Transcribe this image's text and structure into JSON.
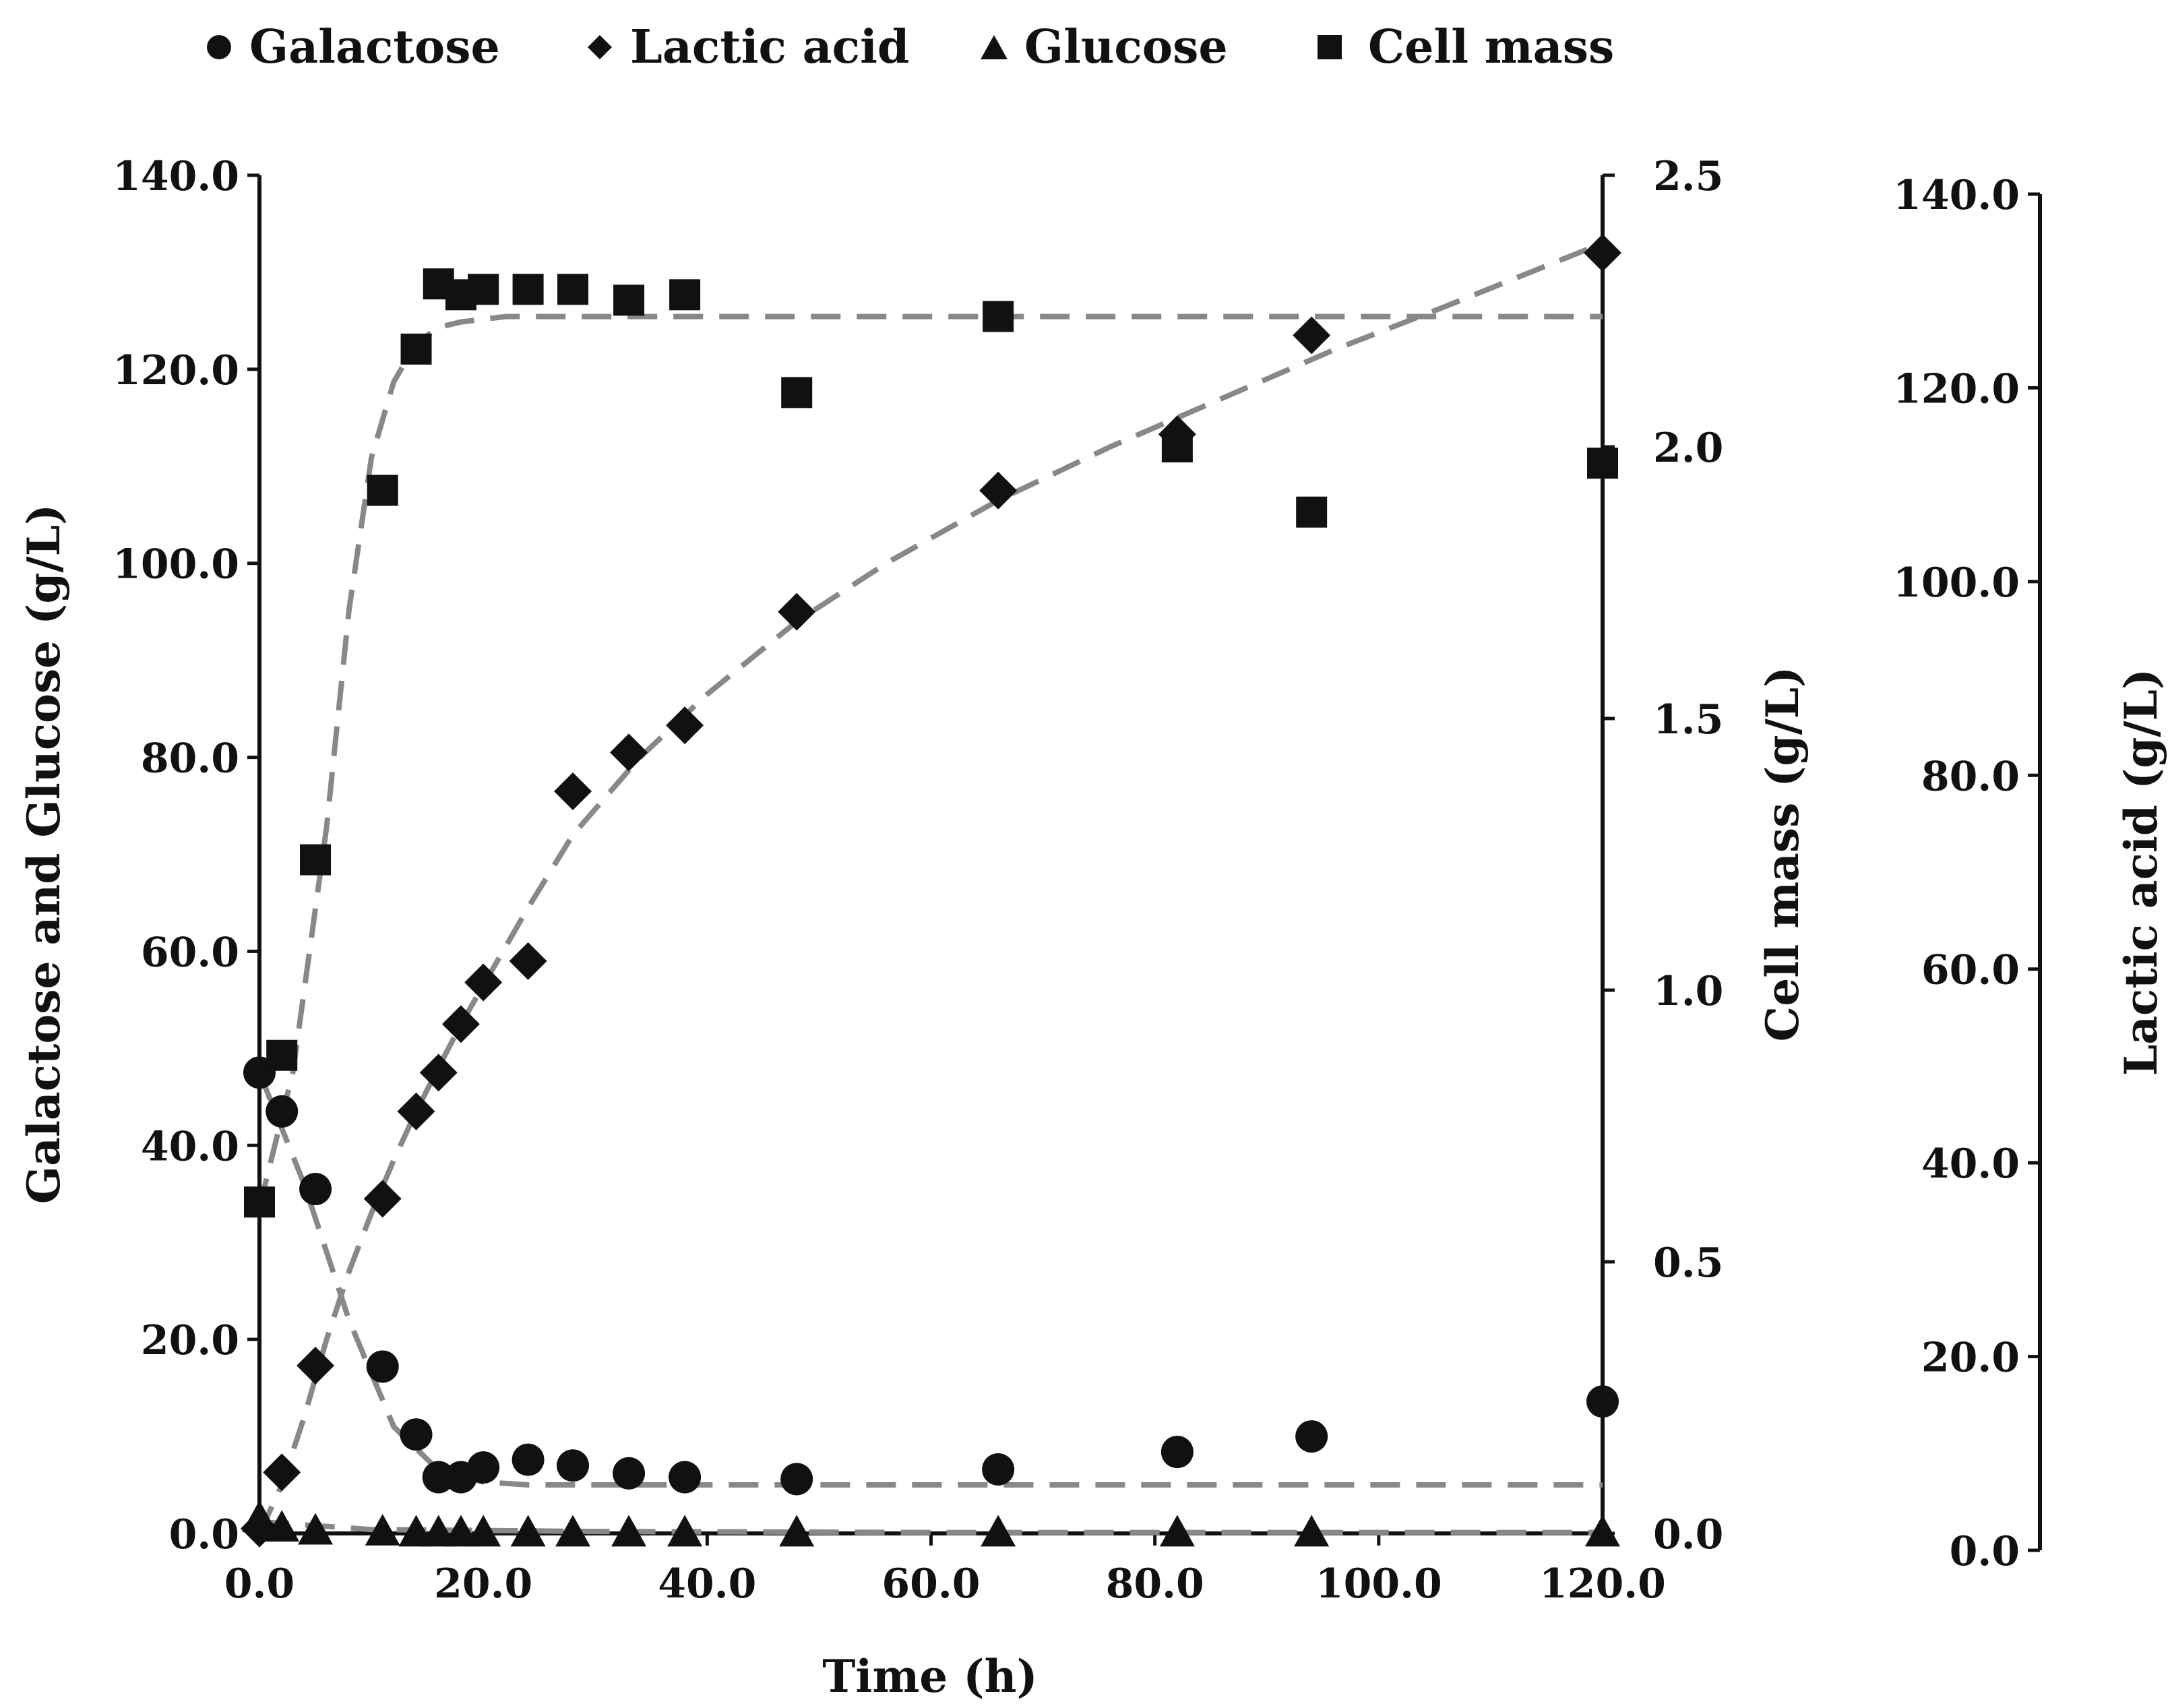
{
  "chart_data": {
    "type": "scatter",
    "title": "",
    "xlabel": "Time (h)",
    "ylabel_left": "Galactose and Glucose (g/L)",
    "ylabel_right_inner": "Cell mass (g/L)",
    "ylabel_right_outer": "Lactic acid (g/L)",
    "xlim": [
      0,
      120
    ],
    "ylim_left": [
      0,
      140
    ],
    "ylim_right_inner": [
      0,
      2.5
    ],
    "ylim_right_outer": [
      0,
      140
    ],
    "x_ticks": [
      "0.0",
      "20.0",
      "40.0",
      "60.0",
      "80.0",
      "100.0",
      "120.0"
    ],
    "y_ticks_left": [
      "0.0",
      "20.0",
      "40.0",
      "60.0",
      "80.0",
      "100.0",
      "120.0",
      "140.0"
    ],
    "y_ticks_right_inner": [
      "0.0",
      "0.5",
      "1.0",
      "1.5",
      "2.0",
      "2.5"
    ],
    "y_ticks_right_outer": [
      "0.0",
      "20.0",
      "40.0",
      "60.0",
      "80.0",
      "100.0",
      "120.0",
      "140.0"
    ],
    "grid": false,
    "legend_position": "top",
    "legend": [
      "Galactose",
      "Lactic acid",
      "Glucose",
      "Cell mass"
    ],
    "series": [
      {
        "name": "Galactose",
        "marker": "circle",
        "axis": "left",
        "x": [
          0,
          2,
          5,
          11,
          14,
          16,
          18,
          20,
          24,
          28,
          33,
          38,
          48,
          66,
          82,
          94,
          120
        ],
        "y": [
          47.5,
          43.5,
          35.5,
          17.2,
          10.2,
          5.8,
          5.8,
          6.8,
          7.6,
          7.0,
          6.2,
          5.8,
          5.6,
          6.6,
          8.4,
          10.0,
          13.6
        ]
      },
      {
        "name": "Lactic acid",
        "marker": "diamond",
        "axis": "right_outer",
        "x": [
          0,
          2,
          5,
          11,
          14,
          16,
          18,
          20,
          24,
          28,
          33,
          38,
          48,
          66,
          82,
          94,
          120
        ],
        "y": [
          0.5,
          6.3,
          17.3,
          34.5,
          43.5,
          47.5,
          52.5,
          56.8,
          59.0,
          76.5,
          80.5,
          83.3,
          95.0,
          107.5,
          113.3,
          123.5,
          132.0
        ]
      },
      {
        "name": "Glucose",
        "marker": "triangle",
        "axis": "left",
        "x": [
          0,
          2,
          5,
          11,
          14,
          16,
          18,
          20,
          24,
          28,
          33,
          38,
          48,
          66,
          82,
          94,
          120
        ],
        "y": [
          1.6,
          0.6,
          0.3,
          0.2,
          0.1,
          0.1,
          0.1,
          0.1,
          0.1,
          0.1,
          0.1,
          0.1,
          0.1,
          0.1,
          0.1,
          0.1,
          0.1
        ]
      },
      {
        "name": "Cell mass",
        "marker": "square",
        "axis": "right_inner",
        "x": [
          0,
          2,
          5,
          11,
          14,
          16,
          18,
          20,
          24,
          28,
          33,
          38,
          48,
          66,
          82,
          94,
          120
        ],
        "y": [
          0.61,
          0.88,
          1.24,
          1.92,
          2.18,
          2.3,
          2.28,
          2.29,
          2.29,
          2.29,
          2.27,
          2.28,
          2.1,
          2.24,
          2.0,
          1.88,
          1.97
        ]
      }
    ],
    "fit_lines": [
      {
        "name": "Galactose fit",
        "axis": "left",
        "x": [
          0,
          4,
          8,
          12,
          16,
          20,
          24,
          30,
          40,
          60,
          80,
          100,
          120
        ],
        "y": [
          47.5,
          36.0,
          22.0,
          11.0,
          6.5,
          5.3,
          5.0,
          5.0,
          5.0,
          5.0,
          5.0,
          5.0,
          5.0
        ]
      },
      {
        "name": "Lactic acid fit",
        "axis": "right_outer",
        "x": [
          0,
          2,
          4,
          6,
          8,
          10,
          12,
          14,
          16,
          18,
          20,
          24,
          28,
          34,
          40,
          48,
          56,
          66,
          76,
          86,
          96,
          106,
          120
        ],
        "y": [
          0.0,
          5.0,
          12.0,
          20.0,
          27.0,
          33.0,
          38.5,
          43.5,
          48.0,
          52.5,
          56.5,
          64.5,
          72.0,
          80.0,
          86.5,
          94.0,
          100.0,
          106.5,
          112.0,
          117.0,
          122.0,
          126.5,
          133.0
        ]
      },
      {
        "name": "Glucose fit",
        "axis": "left",
        "x": [
          0,
          10,
          30,
          60,
          120
        ],
        "y": [
          1.2,
          0.4,
          0.2,
          0.1,
          0.1
        ]
      },
      {
        "name": "Cell mass fit",
        "axis": "right_inner",
        "x": [
          0,
          3,
          6,
          8,
          10,
          12,
          14,
          16,
          18,
          22,
          30,
          50,
          80,
          120
        ],
        "y": [
          0.6,
          0.85,
          1.3,
          1.7,
          1.98,
          2.12,
          2.19,
          2.22,
          2.23,
          2.24,
          2.24,
          2.24,
          2.24,
          2.24
        ]
      }
    ]
  }
}
